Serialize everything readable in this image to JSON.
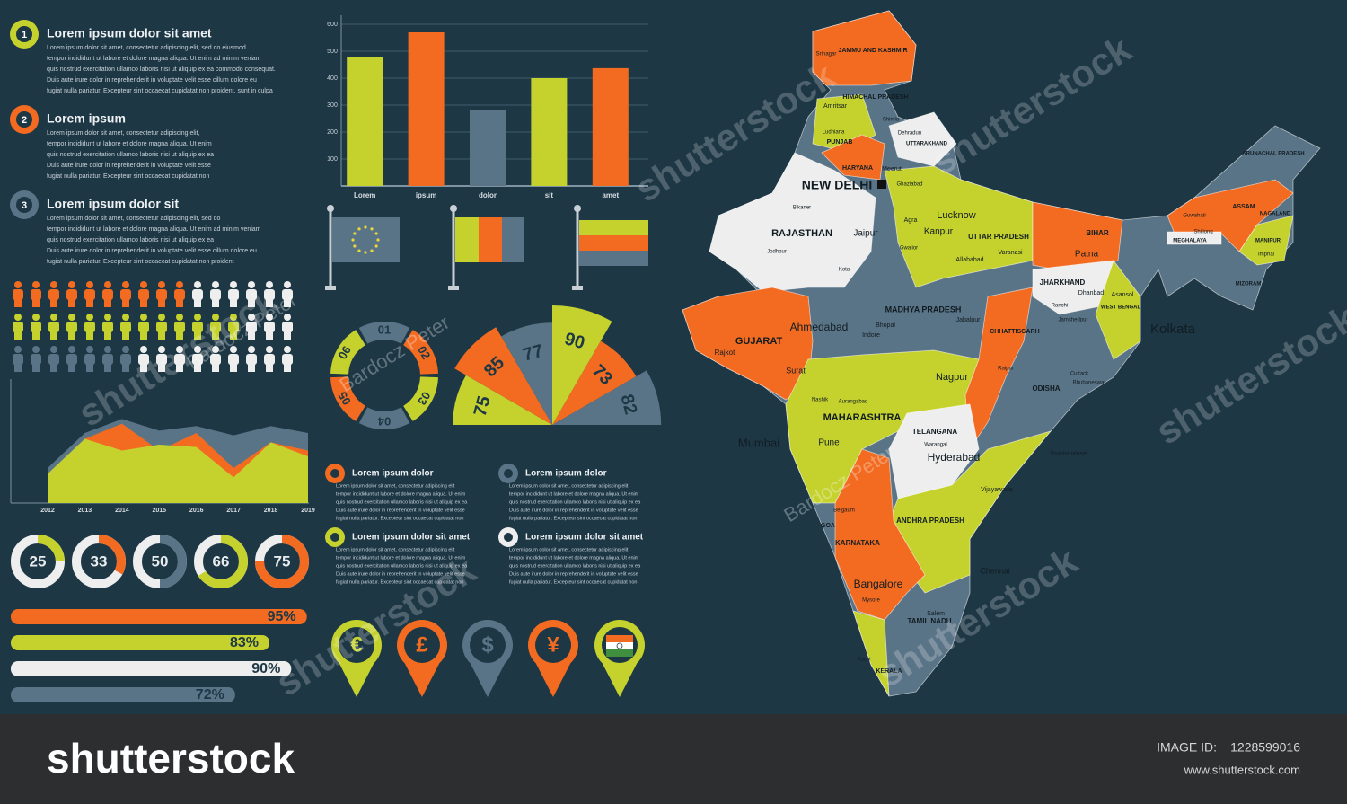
{
  "sections": [
    {
      "number": "1",
      "title": "Lorem ipsum dolor sit amet",
      "color": "#c5d22e",
      "body": [
        "Lorem ipsum dolor sit amet, consectetur adipiscing elit, sed do eiusmod",
        "tempor incididunt ut labore et dolore magna aliqua. Ut enim ad minim veniam",
        "quis nostrud exercitation ullamco laboris nisi ut aliquip ex ea commodo consequat.",
        "Duis aute irure dolor in reprehenderit in voluptate velit esse cillum dolore eu",
        "fugiat nulla pariatur. Excepteur sint occaecat cupidatat non proident, sunt in culpa"
      ]
    },
    {
      "number": "2",
      "title": "Lorem ipsum",
      "color": "#f26b21",
      "body": [
        "Lorem ipsum dolor sit amet, consectetur adipiscing elit,",
        "tempor incididunt ut labore et dolore magna aliqua. Ut enim",
        "quis nostrud exercitation ullamco laboris nisi ut aliquip ex ea",
        "Duis aute irure dolor in reprehenderit in voluptate velit esse",
        "fugiat nulla pariatur. Excepteur sint occaecat cupidatat non"
      ]
    },
    {
      "number": "3",
      "title": "Lorem ipsum dolor sit",
      "color": "#5a7487",
      "body": [
        "Lorem ipsum dolor sit amet, consectetur adipiscing elit, sed do",
        "tempor incididunt ut labore et dolore magna aliqua. Ut enim ad minim veniam",
        "quis nostrud exercitation ullamco laboris nisi ut aliquip ex ea",
        "Duis aute irure dolor in reprehenderit in voluptate velit esse cillum dolore eu",
        "fugiat nulla pariatur. Excepteur sint occaecat cupidatat non proident"
      ]
    }
  ],
  "chart_data": [
    {
      "type": "bar",
      "categories": [
        "Lorem",
        "ipsum",
        "dolor",
        "sit",
        "amet"
      ],
      "values": [
        480,
        570,
        283,
        400,
        437
      ],
      "colors": [
        "#c5d22e",
        "#f26b21",
        "#5a7487",
        "#c5d22e",
        "#f26b21"
      ],
      "ylim": [
        0,
        600
      ],
      "yticks": [
        100,
        200,
        300,
        400,
        500,
        600
      ],
      "grid": true
    },
    {
      "type": "area",
      "categories": [
        "2012",
        "2013",
        "2014",
        "2015",
        "2016",
        "2017",
        "2018",
        "2019"
      ],
      "ylim": [
        0,
        100
      ],
      "series": [
        {
          "color": "#5a7487",
          "values": [
            30,
            60,
            72,
            62,
            66,
            58,
            66,
            60
          ]
        },
        {
          "color": "#f26b21",
          "values": [
            20,
            55,
            68,
            45,
            60,
            30,
            52,
            45
          ]
        },
        {
          "color": "#c5d22e",
          "values": [
            25,
            55,
            45,
            50,
            48,
            22,
            52,
            40
          ]
        }
      ]
    },
    {
      "type": "ring",
      "categories": [
        "01",
        "02",
        "03",
        "04",
        "05",
        "06"
      ],
      "colors": [
        "#5a7487",
        "#f26b21",
        "#c5d22e",
        "#5a7487",
        "#f26b21",
        "#c5d22e"
      ]
    },
    {
      "type": "rose",
      "values": [
        75,
        85,
        77,
        90,
        73,
        82
      ],
      "colors": [
        "#c5d22e",
        "#f26b21",
        "#5a7487",
        "#c5d22e",
        "#f26b21",
        "#5a7487"
      ],
      "rlim": [
        0,
        90
      ]
    },
    {
      "type": "donut",
      "values": [
        25,
        33,
        50,
        66,
        75
      ],
      "colors": [
        "#c5d22e",
        "#f26b21",
        "#5a7487",
        "#c5d22e",
        "#f26b21"
      ],
      "ylim": [
        0,
        100
      ]
    },
    {
      "type": "progress",
      "values": [
        95,
        83,
        90,
        72
      ],
      "value_labels": [
        "95%",
        "83%",
        "90%",
        "72%"
      ],
      "colors": [
        "#f26b21",
        "#c5d22e",
        "#eeeeee",
        "#5a7487"
      ],
      "xlim": [
        0,
        100
      ]
    },
    {
      "type": "pictogram",
      "total": 16,
      "values": [
        10,
        13,
        7
      ],
      "colors": [
        "#f26b21",
        "#c5d22e",
        "#5a7487"
      ]
    }
  ],
  "text_blocks": [
    {
      "title": "Lorem ipsum dolor",
      "color": "#f26b21",
      "body": [
        "Lorem ipsum dolor sit amet, consectetur adipiscing elit",
        "tempor incididunt ut labore et dolore magna aliqua. Ut enim",
        "quis nostrud exercitation ullamco laboris nisi ut aliquip ex ea",
        "Duis aute irure dolor in reprehenderit in voluptate velit esse",
        "fugiat nulla pariatur. Excepteur sint occaecat cupidatat non"
      ]
    },
    {
      "title": "Lorem ipsum dolor",
      "color": "#5a7487",
      "body": [
        "Lorem ipsum dolor sit amet, consectetur adipiscing elit",
        "tempor incididunt ut labore et dolore magna aliqua. Ut enim",
        "quis nostrud exercitation ullamco laboris nisi ut aliquip ex ea",
        "Duis aute irure dolor in reprehenderit in voluptate velit esse",
        "fugiat nulla pariatur. Excepteur sint occaecat cupidatat non"
      ]
    },
    {
      "title": "Lorem ipsum dolor sit amet",
      "color": "#c5d22e",
      "body": [
        "Lorem ipsum dolor sit amet, consectetur adipiscing elit",
        "tempor incididunt ut labore et dolore magna aliqua. Ut enim",
        "quis nostrud exercitation ullamco laboris nisi ut aliquip ex ea",
        "Duis aute irure dolor in reprehenderit in voluptate velit esse",
        "fugiat nulla pariatur. Excepteur sint occaecat cupidatat non"
      ]
    },
    {
      "title": "Lorem ipsum dolor sit amet",
      "color": "#eeeeee",
      "body": [
        "Lorem ipsum dolor sit amet, consectetur adipiscing elit",
        "tempor incididunt ut labore et dolore magna aliqua. Ut enim",
        "quis nostrud exercitation ullamco laboris nisi ut aliquip ex ea",
        "Duis aute irure dolor in reprehenderit in voluptate velit esse",
        "fugiat nulla pariatur. Excepteur sint occaecat cupidatat non"
      ]
    }
  ],
  "pins": [
    {
      "symbol": "€",
      "color": "#c5d22e"
    },
    {
      "symbol": "£",
      "color": "#f26b21"
    },
    {
      "symbol": "$",
      "color": "#5a7487"
    },
    {
      "symbol": "¥",
      "color": "#f26b21"
    }
  ],
  "map": {
    "labels": [
      "JAMMU AND KASHMIR",
      "HIMACHAL PRADESH",
      "PUNJAB",
      "UTTARAKHAND",
      "HARYANA",
      "NEW DELHI",
      "RAJASTHAN",
      "UTTAR PRADESH",
      "BIHAR",
      "ARUNACHAL PRADESH",
      "ASSAM",
      "NAGALAND",
      "MEGHALAYA",
      "MANIPUR",
      "MIZORAM",
      "JHARKHAND",
      "WEST BENGAL",
      "GUJARAT",
      "MADHYA PRADESH",
      "CHHATTISGARH",
      "ODISHA",
      "MAHARASHTRA",
      "TELANGANA",
      "ANDHRA PRADESH",
      "GOA",
      "KARNATAKA",
      "TAMIL NADU",
      "KERALA",
      "Lucknow",
      "Kanpur",
      "Patna",
      "Kolkata",
      "Ahmedabad",
      "Jaipur",
      "Mumbai",
      "Pune",
      "Nagpur",
      "Hyderabad",
      "Bangalore",
      "Chennai",
      "Surat",
      "Rajkot",
      "Bhopal",
      "Indore",
      "Jabalpur",
      "Srinagar",
      "Amritsar",
      "Shimla",
      "Dehradun",
      "Ludhiana",
      "Agra",
      "Allahabad",
      "Varanasi",
      "Ranchi",
      "Jamshedpur",
      "Asansol",
      "Dhanbad",
      "Guwahati",
      "Shillong",
      "Imphal",
      "Cuttack",
      "Bhubaneswar",
      "Visakhapatnam",
      "Vijayawada",
      "Nashik",
      "Aurangabad",
      "Kota",
      "Jodhpur",
      "Bikaner",
      "Gwalior",
      "Raipur",
      "Warangal",
      "Salem",
      "Kochi",
      "Mysore",
      "Belgaum",
      "Meerut",
      "Ghaziabad"
    ]
  },
  "watermarks": [
    "shutterstock",
    "Bardocz Peter"
  ],
  "footer": {
    "logo": "shutterstock",
    "image_id_label": "IMAGE ID:",
    "image_id": "1228599016",
    "url": "www.shutterstock.com"
  }
}
